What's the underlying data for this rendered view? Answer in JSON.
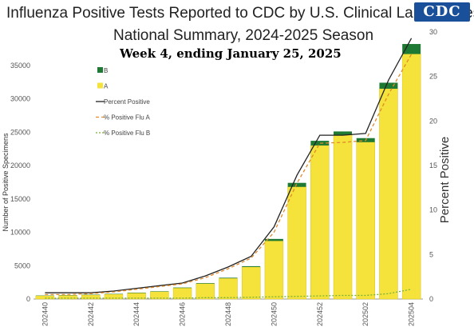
{
  "header": {
    "title_line1": "Influenza Positive Tests Reported to CDC by U.S. Clinical Laboratories,",
    "title_line2": "National Summary, 2024-2025 Season",
    "subtitle": "Week 4, ending January 25, 2025",
    "logo_text": "CDC"
  },
  "colors": {
    "flu_a": "#f5e33b",
    "flu_b": "#1e7a32",
    "percent_positive": "#222222",
    "pct_flu_a": "#e08a2a",
    "pct_flu_b": "#7ab03a"
  },
  "chart_data": {
    "type": "bar",
    "stacked": true,
    "title": "Influenza Positive Tests Reported to CDC by U.S. Clinical Laboratories, National Summary, 2024-2025 Season",
    "subtitle": "Week 4, ending January 25, 2025",
    "ylabel": "Number of Positive Specimens",
    "ylabel_right": "Percent Positive",
    "ylim": [
      0,
      40000
    ],
    "ylim_right": [
      0,
      30
    ],
    "yticks": [
      0,
      5000,
      10000,
      15000,
      20000,
      25000,
      30000,
      35000
    ],
    "yticks_right": [
      0,
      5,
      10,
      15,
      20,
      25,
      30
    ],
    "x_tick_labels": [
      "202440",
      "202442",
      "202444",
      "202446",
      "202448",
      "202450",
      "202452",
      "202502",
      "202504"
    ],
    "categories": [
      "202440",
      "202441",
      "202442",
      "202443",
      "202444",
      "202445",
      "202446",
      "202447",
      "202448",
      "202449",
      "202450",
      "202451",
      "202452",
      "202501",
      "202502",
      "202503",
      "202504"
    ],
    "series": [
      {
        "name": "A",
        "values": [
          480,
          530,
          600,
          720,
          900,
          1100,
          1650,
          2300,
          3100,
          4800,
          8700,
          16800,
          23000,
          24600,
          23500,
          31500,
          36700
        ]
      },
      {
        "name": "B",
        "values": [
          40,
          40,
          50,
          50,
          60,
          60,
          70,
          80,
          90,
          120,
          300,
          600,
          700,
          500,
          600,
          900,
          1500
        ]
      }
    ],
    "lines": [
      {
        "name": "Percent Positive",
        "axis": "right",
        "values": [
          0.7,
          0.7,
          0.7,
          0.9,
          1.2,
          1.5,
          1.8,
          2.6,
          3.6,
          4.8,
          8.1,
          13.9,
          18.4,
          18.4,
          18.6,
          24.6,
          29.3
        ]
      },
      {
        "name": "% Positive Flu A",
        "axis": "right",
        "values": [
          0.5,
          0.5,
          0.6,
          0.8,
          1.1,
          1.4,
          1.7,
          2.4,
          3.4,
          4.6,
          7.5,
          13.0,
          17.5,
          17.6,
          17.8,
          23.0,
          27.5
        ]
      },
      {
        "name": "% Positive Flu B",
        "axis": "right",
        "values": [
          0.1,
          0.1,
          0.1,
          0.1,
          0.1,
          0.1,
          0.1,
          0.15,
          0.15,
          0.2,
          0.25,
          0.3,
          0.35,
          0.4,
          0.4,
          0.6,
          1.1
        ]
      }
    ],
    "legend": {
      "position": "top-left",
      "entries": [
        "B",
        "A",
        "Percent Positive",
        "% Positive Flu A",
        "% Positive Flu B"
      ]
    },
    "grid": false
  }
}
